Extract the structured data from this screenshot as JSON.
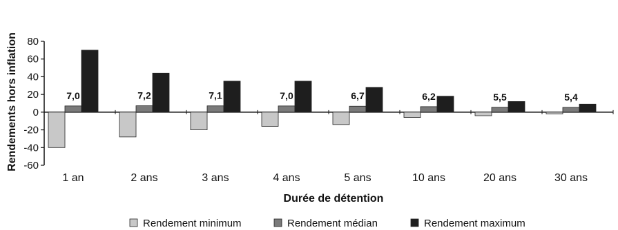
{
  "chart_data": {
    "type": "bar",
    "categories": [
      "1 an",
      "2 ans",
      "3 ans",
      "4 ans",
      "5 ans",
      "10 ans",
      "20 ans",
      "30 ans"
    ],
    "series": [
      {
        "name": "Rendement minimum",
        "color": "#c8c8c8",
        "values": [
          -40,
          -28,
          -20,
          -16,
          -14,
          -6,
          -4,
          -2
        ]
      },
      {
        "name": "Rendement médian",
        "color": "#7a7a7a",
        "values": [
          7.0,
          7.2,
          7.1,
          7.0,
          6.7,
          6.2,
          5.5,
          5.4
        ]
      },
      {
        "name": "Rendement maximum",
        "color": "#1e1e1e",
        "values": [
          70,
          44,
          35,
          35,
          28,
          18,
          12,
          9
        ]
      }
    ],
    "data_labels": [
      "7,0",
      "7,2",
      "7,1",
      "7,0",
      "6,7",
      "6,2",
      "5,5",
      "5,4"
    ],
    "xlabel": "Durée de détention",
    "ylabel": "Rendements hors inflation",
    "ylim": [
      -60,
      80
    ],
    "yticks": [
      "80",
      "60",
      "40",
      "20",
      "0",
      "-20",
      "-40",
      "-60"
    ],
    "grid": false,
    "legend_position": "bottom"
  }
}
